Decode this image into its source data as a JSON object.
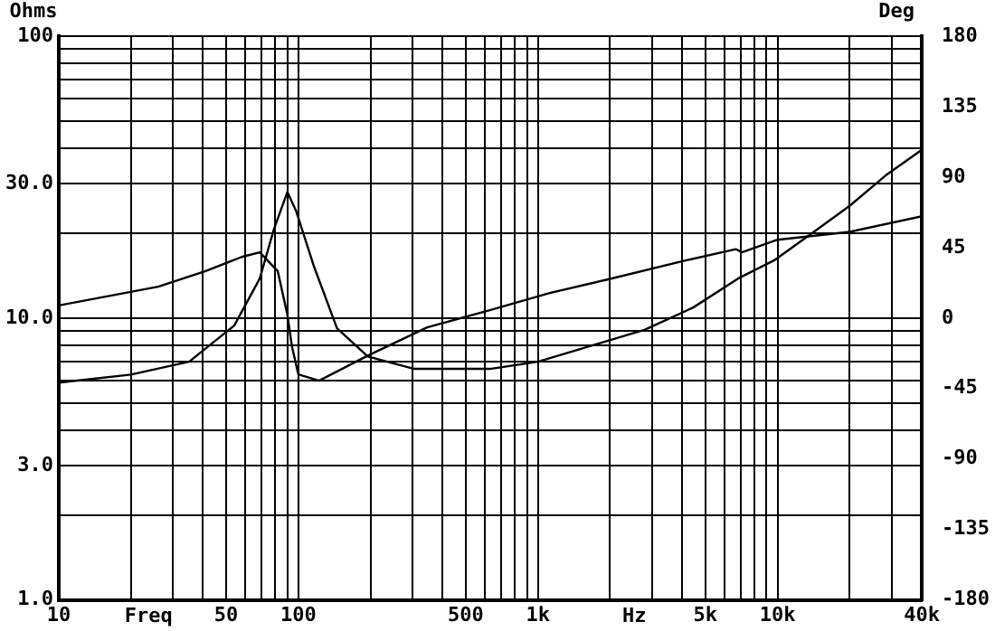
{
  "chart_data": {
    "type": "line",
    "xlabel": "Freq",
    "ylabel": "Ohms",
    "y2label": "Deg",
    "annotations": [
      "Hz"
    ],
    "log": "xy",
    "grid": true,
    "marker": "none",
    "line_style": "solid",
    "xlim": [
      10,
      40000
    ],
    "ylim": [
      1,
      100
    ],
    "y2lim": [
      -180,
      180
    ],
    "xticks": [
      10,
      {
        "value": 20,
        "label": null
      },
      {
        "value": 30,
        "label": null
      },
      {
        "value": 40,
        "label": null
      },
      50,
      {
        "value": 60,
        "label": null
      },
      {
        "value": 70,
        "label": null
      },
      {
        "value": 80,
        "label": null
      },
      {
        "value": 90,
        "label": null
      },
      100,
      {
        "value": 200,
        "label": null
      },
      {
        "value": 300,
        "label": null
      },
      {
        "value": 400,
        "label": null
      },
      500,
      {
        "value": 600,
        "label": null
      },
      {
        "value": 700,
        "label": null
      },
      {
        "value": 800,
        "label": null
      },
      {
        "value": 900,
        "label": null
      },
      {
        "value": 1000,
        "label": "1k"
      },
      {
        "value": 2000,
        "label": null
      },
      {
        "value": 3000,
        "label": null
      },
      {
        "value": 4000,
        "label": null
      },
      {
        "value": 5000,
        "label": "5k"
      },
      {
        "value": 6000,
        "label": null
      },
      {
        "value": 7000,
        "label": null
      },
      {
        "value": 8000,
        "label": null
      },
      {
        "value": 9000,
        "label": null
      },
      {
        "value": 10000,
        "label": "10k"
      },
      {
        "value": 20000,
        "label": null
      },
      {
        "value": 30000,
        "label": null
      },
      {
        "value": 40000,
        "label": "40k"
      }
    ],
    "yticks": [
      {
        "value": 1,
        "label": "1.0"
      },
      {
        "value": 2,
        "label": null
      },
      {
        "value": 3,
        "label": "3.0"
      },
      {
        "value": 4,
        "label": null
      },
      {
        "value": 5,
        "label": null
      },
      {
        "value": 6,
        "label": null
      },
      {
        "value": 7,
        "label": null
      },
      {
        "value": 8,
        "label": null
      },
      {
        "value": 9,
        "label": null
      },
      {
        "value": 10,
        "label": "10.0"
      },
      {
        "value": 20,
        "label": null
      },
      {
        "value": 30,
        "label": "30.0"
      },
      {
        "value": 40,
        "label": null
      },
      {
        "value": 50,
        "label": null
      },
      {
        "value": 60,
        "label": null
      },
      {
        "value": 70,
        "label": null
      },
      {
        "value": 80,
        "label": null
      },
      {
        "value": 90,
        "label": null
      },
      100
    ],
    "y2ticks": [
      -180,
      -135,
      -90,
      -45,
      0,
      45,
      90,
      135,
      180
    ],
    "series": [
      {
        "color": "#000000",
        "x": [
          10,
          20,
          35,
          54,
          69,
          79,
          90,
          98,
          116,
          145,
          195,
          305,
          630,
          1000,
          2800,
          4450,
          6840,
          9660,
          13600,
          20000,
          28200,
          40000
        ],
        "values": [
          5.9,
          6.3,
          7.0,
          9.4,
          13.8,
          20.6,
          28,
          23.9,
          15.3,
          9.2,
          7.3,
          6.6,
          6.6,
          7.0,
          9.1,
          10.9,
          13.8,
          16.0,
          19.7,
          25,
          32,
          39.5
        ]
      },
      {
        "color": "#000000",
        "axis": "y2",
        "x": [
          10,
          26,
          41,
          58,
          69,
          82,
          90,
          94,
          100,
          122,
          195,
          345,
          630,
          1120,
          2000,
          4200,
          6700,
          7100,
          10000,
          20000,
          40000
        ],
        "values": [
          8,
          20,
          30,
          39,
          42,
          30,
          2,
          -18,
          -36,
          -40,
          -24,
          -6,
          5,
          16,
          25,
          37,
          44,
          42,
          50,
          55,
          65
        ]
      }
    ]
  }
}
